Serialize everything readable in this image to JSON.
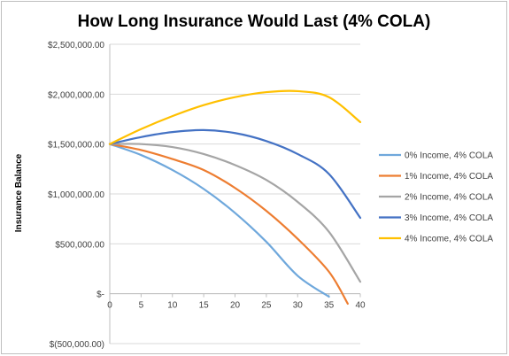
{
  "chart_data": {
    "type": "line",
    "title": "How Long Insurance Would Last (4% COLA)",
    "xlabel": "",
    "ylabel": "Insurance Balance",
    "xlim": [
      0,
      40
    ],
    "ylim": [
      -500000,
      2500000
    ],
    "x_ticks": [
      "0",
      "5",
      "10",
      "15",
      "20",
      "25",
      "30",
      "35",
      "40"
    ],
    "y_ticks": [
      {
        "value": 2500000,
        "label": "$2,500,000.00"
      },
      {
        "value": 2000000,
        "label": "$2,000,000.00"
      },
      {
        "value": 1500000,
        "label": "$1,500,000.00"
      },
      {
        "value": 1000000,
        "label": "$1,000,000.00"
      },
      {
        "value": 500000,
        "label": "$500,000.00"
      },
      {
        "value": 0,
        "label": "$-"
      },
      {
        "value": -500000,
        "label": "$(500,000.00)"
      }
    ],
    "grid": true,
    "legend_position": "right",
    "series": [
      {
        "name": "0% Income, 4% COLA",
        "color": "#6fa8dc",
        "x": [
          0,
          5,
          10,
          15,
          20,
          25,
          30,
          35
        ],
        "y": [
          1500000,
          1390000,
          1240000,
          1050000,
          810000,
          520000,
          180000,
          -30000
        ]
      },
      {
        "name": "1% Income, 4% COLA",
        "color": "#ed7d31",
        "x": [
          0,
          5,
          10,
          15,
          20,
          25,
          30,
          35,
          38
        ],
        "y": [
          1500000,
          1440000,
          1350000,
          1240000,
          1060000,
          830000,
          550000,
          220000,
          -100000
        ]
      },
      {
        "name": "2% Income, 4% COLA",
        "color": "#a5a5a5",
        "x": [
          0,
          5,
          10,
          15,
          20,
          25,
          30,
          35,
          40
        ],
        "y": [
          1500000,
          1500000,
          1470000,
          1400000,
          1290000,
          1140000,
          920000,
          620000,
          120000
        ]
      },
      {
        "name": "3% Income, 4% COLA",
        "color": "#4472c4",
        "x": [
          0,
          5,
          10,
          15,
          20,
          25,
          30,
          35,
          40
        ],
        "y": [
          1500000,
          1570000,
          1620000,
          1640000,
          1610000,
          1530000,
          1400000,
          1200000,
          760000
        ]
      },
      {
        "name": "4% Income, 4% COLA",
        "color": "#ffc000",
        "x": [
          0,
          5,
          10,
          15,
          20,
          25,
          30,
          35,
          40
        ],
        "y": [
          1500000,
          1650000,
          1780000,
          1890000,
          1970000,
          2020000,
          2030000,
          1970000,
          1720000
        ]
      }
    ]
  }
}
